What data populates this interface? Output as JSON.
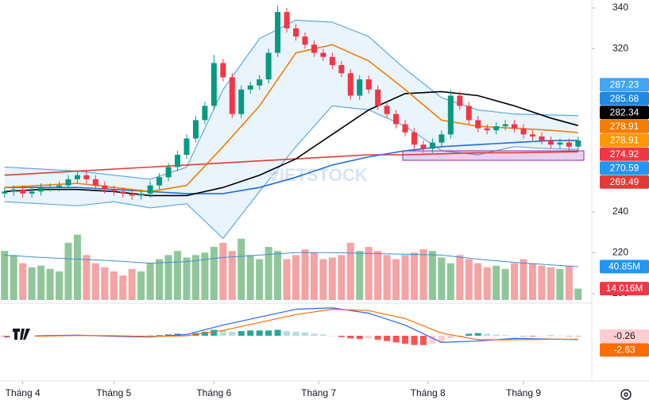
{
  "chart_data": {
    "type": "candlestick",
    "watermark": "VIETSTOCK",
    "xlim": [
      -0.5,
      64.5
    ],
    "xticks": [
      {
        "value": 2,
        "label": "Tháng 4"
      },
      {
        "value": 12,
        "label": "Tháng 5"
      },
      {
        "value": 23,
        "label": "Tháng 6"
      },
      {
        "value": 34.5,
        "label": "Tháng 7"
      },
      {
        "value": 46.5,
        "label": "Tháng 8"
      },
      {
        "value": 57,
        "label": "Tháng 9"
      }
    ],
    "ylim": [
      196.8,
      343.9
    ],
    "yticks": [
      200,
      220,
      240,
      320,
      340
    ],
    "up_color": "#089981",
    "down_color": "#f23645",
    "open": [
      249,
      250,
      251,
      249,
      250,
      252,
      252,
      253,
      256,
      258,
      256,
      253,
      251,
      250,
      249,
      248,
      249,
      253,
      257,
      262,
      268,
      276,
      285,
      292,
      313,
      306,
      288,
      300,
      302,
      305,
      318,
      338,
      330,
      326,
      322,
      318,
      316,
      312,
      308,
      297,
      305,
      300,
      292,
      288,
      283,
      279,
      273,
      271,
      274,
      278,
      297,
      292,
      285,
      281,
      280,
      282,
      283,
      281,
      278,
      277,
      275,
      273,
      274,
      272
    ],
    "high": [
      252,
      253,
      253,
      252,
      254,
      254,
      255,
      258,
      260,
      260,
      258,
      255,
      253,
      252,
      251,
      251,
      255,
      259,
      264,
      270,
      278,
      287,
      294,
      317,
      315,
      308,
      302,
      304,
      307,
      320,
      341,
      340,
      332,
      328,
      324,
      320,
      318,
      314,
      310,
      307,
      307,
      302,
      294,
      290,
      285,
      281,
      275,
      276,
      280,
      300,
      299,
      294,
      287,
      283,
      284,
      285,
      285,
      283,
      280,
      279,
      277,
      276,
      276,
      277
    ],
    "low": [
      247,
      248,
      247,
      247,
      248,
      250,
      250,
      251,
      254,
      254,
      251,
      249,
      248,
      247,
      246,
      246,
      247,
      251,
      255,
      260,
      266,
      274,
      283,
      290,
      304,
      286,
      286,
      298,
      300,
      303,
      316,
      328,
      324,
      320,
      316,
      314,
      310,
      306,
      295,
      295,
      298,
      290,
      286,
      281,
      277,
      271,
      269,
      269,
      272,
      276,
      290,
      283,
      279,
      278,
      278,
      280,
      279,
      276,
      275,
      273,
      271,
      271,
      270,
      270
    ],
    "close": [
      250,
      251,
      249,
      250,
      252,
      252,
      253,
      256,
      258,
      256,
      253,
      251,
      250,
      249,
      248,
      249,
      253,
      257,
      262,
      268,
      276,
      285,
      292,
      313,
      306,
      288,
      300,
      302,
      305,
      318,
      338,
      330,
      326,
      322,
      318,
      316,
      312,
      308,
      297,
      305,
      300,
      292,
      288,
      283,
      279,
      273,
      271,
      274,
      278,
      297,
      292,
      285,
      281,
      280,
      282,
      283,
      281,
      278,
      277,
      275,
      273,
      274,
      272,
      275
    ],
    "line_x": [
      0,
      4,
      8,
      12,
      16,
      20,
      24,
      28,
      32,
      36,
      40,
      44,
      48,
      52,
      56,
      60,
      63
    ],
    "bollinger": {
      "color": "#5aa9e6",
      "fill": "#eaf4fc",
      "upper": [
        262,
        261,
        260,
        258,
        256,
        262,
        300,
        325,
        334,
        333,
        326,
        310,
        296,
        290,
        288,
        287.5,
        287.23
      ],
      "lower": [
        245,
        244,
        243,
        245,
        242,
        244,
        227,
        250,
        272,
        292,
        290,
        282,
        270,
        268,
        272,
        271,
        270.59
      ]
    },
    "lines": [
      {
        "color": "#e53935",
        "values": [
          258,
          259,
          260,
          261,
          262,
          263,
          264,
          265,
          266,
          267,
          268,
          268,
          268.5,
          269,
          269,
          269.3,
          269.49
        ]
      },
      {
        "color": "#1e6fd9",
        "values": [
          252,
          252,
          252,
          251,
          250,
          249,
          249,
          252,
          257,
          263,
          267,
          270,
          272,
          273,
          274,
          275,
          275
        ]
      },
      {
        "color": "#000000",
        "values": [
          250,
          251,
          251,
          250,
          248,
          248,
          252,
          258,
          266,
          278,
          290,
          298,
          299,
          297,
          292,
          286,
          282.34
        ]
      },
      {
        "color": "#f57c00",
        "values": [
          252,
          253,
          254,
          252,
          250,
          253,
          272,
          292,
          318,
          322,
          314,
          300,
          285,
          282,
          281,
          280,
          278.91
        ]
      }
    ],
    "price_labels": [
      {
        "value": 287.23,
        "color": "#42a5f5"
      },
      {
        "value": 285.68,
        "color": "#1e88e5"
      },
      {
        "value": 282.34,
        "color": "#000000"
      },
      {
        "value": 278.91,
        "color": "#f57c00"
      },
      {
        "value": 278.91,
        "color": "#ff9800"
      },
      {
        "value": 274.92,
        "color": "#f23645"
      },
      {
        "value": 270.59,
        "color": "#2196f3"
      },
      {
        "value": 269.49,
        "color": "#e53935"
      }
    ],
    "volume": {
      "up_color": "#8fc79a",
      "down_color": "#f5a3a3",
      "values": [
        60,
        55,
        45,
        40,
        42,
        38,
        35,
        70,
        80,
        55,
        45,
        40,
        35,
        30,
        38,
        35,
        45,
        50,
        55,
        60,
        52,
        55,
        58,
        65,
        70,
        60,
        75,
        55,
        50,
        65,
        60,
        50,
        55,
        62,
        58,
        50,
        52,
        55,
        70,
        60,
        65,
        60,
        55,
        50,
        55,
        58,
        62,
        60,
        52,
        45,
        55,
        50,
        45,
        40,
        42,
        38,
        45,
        50,
        45,
        42,
        40,
        38,
        42,
        14.016
      ],
      "ma": {
        "color": "#3d8fd8",
        "values": [
          55,
          52,
          50,
          48,
          45,
          47,
          52,
          55,
          58,
          58,
          57,
          56,
          55,
          50,
          46,
          43,
          40.85
        ]
      },
      "labels": [
        {
          "value": 40.85,
          "label": "40.85M",
          "color": "#2196f3"
        },
        {
          "value": 14.016,
          "label": "14.016M",
          "color": "#f23645"
        }
      ]
    },
    "macd": {
      "macd": {
        "color": "#2962ff",
        "values": [
          -1,
          0,
          0.5,
          -0.5,
          -1,
          1,
          8,
          14,
          20,
          21,
          17,
          8,
          -5,
          -4,
          -2,
          -2.5,
          -2.89
        ]
      },
      "signal": {
        "color": "#ff6d00",
        "values": [
          -0.5,
          -0.3,
          0.2,
          0,
          -0.6,
          0,
          4,
          10,
          16,
          20,
          19,
          13,
          2,
          -3,
          -3,
          -2.7,
          -2.63
        ]
      },
      "histogram": [
        -0.5,
        -0.3,
        -0.2,
        0.1,
        0.2,
        0.3,
        0.4,
        0.3,
        0.3,
        0.2,
        0,
        -0.3,
        -0.5,
        -0.4,
        -0.3,
        -0.3,
        0.2,
        0.5,
        1,
        1.5,
        1,
        2,
        3,
        4.5,
        4,
        3,
        3.5,
        4,
        4,
        4,
        4.5,
        3.5,
        3,
        2.5,
        1.5,
        1,
        0,
        -1,
        -2,
        -2.5,
        -2,
        -3,
        -4,
        -5,
        -6,
        -7,
        -7,
        -6,
        -5,
        -2,
        0,
        1.5,
        2,
        1.5,
        1,
        0.5,
        0,
        -0.3,
        -0.5,
        -0.3,
        0.2,
        0.1,
        -0.2,
        -0.26
      ],
      "histogram_colors": [
        "#26a69a",
        "#b2dfdb",
        "#ff5252",
        "#ffcdd2"
      ],
      "labels": [
        {
          "value": -0.26,
          "color": "#ffcdd2",
          "text_color": "#131722"
        },
        {
          "value": -2.63,
          "color": "#ff6d00",
          "text_color": "#ffffff"
        }
      ]
    }
  }
}
